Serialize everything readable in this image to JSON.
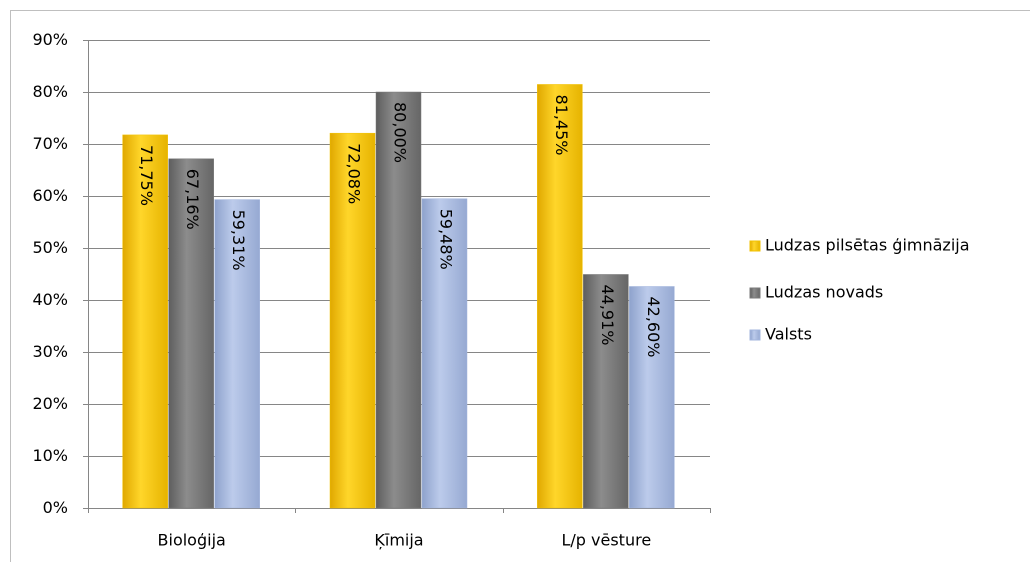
{
  "chart_data": {
    "type": "bar",
    "categories": [
      "Bioloģija",
      "Ķīmija",
      "L/p vēsture"
    ],
    "series": [
      {
        "name": "Ludzas pilsētas ģimnāzija",
        "color": "#f2c200",
        "values": [
          71.75,
          72.08,
          81.45
        ],
        "value_labels": [
          "71,75%",
          "72,08%",
          "81,45%"
        ]
      },
      {
        "name": "Ludzas novads",
        "color": "#7a7a7a",
        "values": [
          67.16,
          80.0,
          44.91
        ],
        "value_labels": [
          "67,16%",
          "80,00%",
          "44,91%"
        ]
      },
      {
        "name": "Valsts",
        "color": "#a3b6de",
        "values": [
          59.31,
          59.48,
          42.6
        ],
        "value_labels": [
          "59,31%",
          "59,48%",
          "42,60%"
        ]
      }
    ],
    "ylim": [
      0,
      90
    ],
    "yticks": [
      {
        "value": 0,
        "label": "0%"
      },
      {
        "value": 10,
        "label": "10%"
      },
      {
        "value": 20,
        "label": "20%"
      },
      {
        "value": 30,
        "label": "30%"
      },
      {
        "value": 40,
        "label": "40%"
      },
      {
        "value": 50,
        "label": "50%"
      },
      {
        "value": 60,
        "label": "60%"
      },
      {
        "value": 70,
        "label": "70%"
      },
      {
        "value": 80,
        "label": "80%"
      },
      {
        "value": 90,
        "label": "90%"
      }
    ],
    "grid": true,
    "legend": "right"
  }
}
